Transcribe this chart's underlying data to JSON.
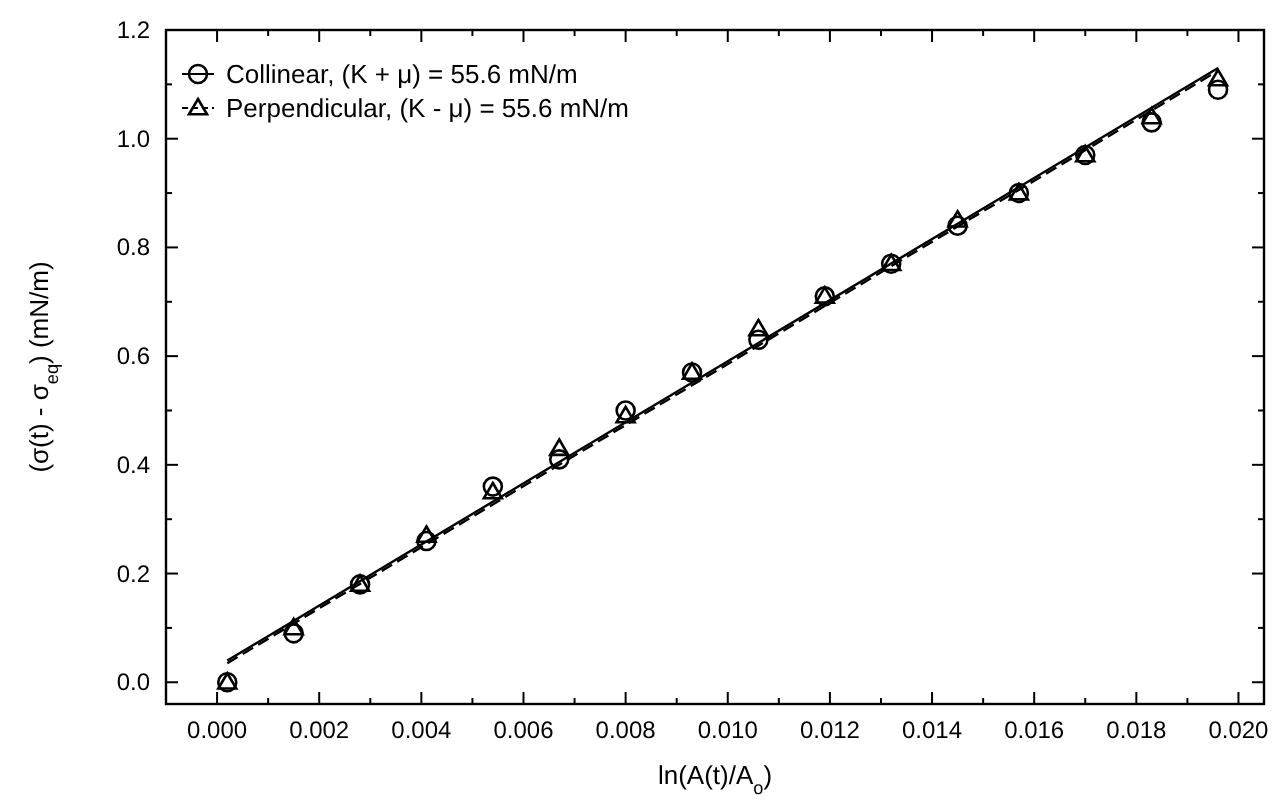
{
  "chart_data": {
    "type": "scatter",
    "xlabel": "ln(A(t)/A$_{o}$)",
    "ylabel": "(σ(t) - σ$_{eq}$) (mN/m)",
    "xlim": [
      -0.001,
      0.0205
    ],
    "ylim": [
      -0.04,
      1.2
    ],
    "xticks": [
      {
        "value": 0,
        "label": "0.000"
      },
      {
        "value": 0.001,
        "label": null
      },
      {
        "value": 0.002,
        "label": "0.002"
      },
      {
        "value": 0.003,
        "label": null
      },
      {
        "value": 0.004,
        "label": "0.004"
      },
      {
        "value": 0.005,
        "label": null
      },
      {
        "value": 0.006,
        "label": "0.006"
      },
      {
        "value": 0.007,
        "label": null
      },
      {
        "value": 0.008,
        "label": "0.008"
      },
      {
        "value": 0.009,
        "label": null
      },
      {
        "value": 0.01,
        "label": "0.010"
      },
      {
        "value": 0.011,
        "label": null
      },
      {
        "value": 0.012,
        "label": "0.012"
      },
      {
        "value": 0.013,
        "label": null
      },
      {
        "value": 0.014,
        "label": "0.014"
      },
      {
        "value": 0.015,
        "label": null
      },
      {
        "value": 0.016,
        "label": "0.016"
      },
      {
        "value": 0.017,
        "label": null
      },
      {
        "value": 0.018,
        "label": "0.018"
      },
      {
        "value": 0.019,
        "label": null
      },
      {
        "value": 0.02,
        "label": "0.020"
      }
    ],
    "yticks": [
      {
        "value": 0,
        "label": "0.0"
      },
      {
        "value": 0.1,
        "label": null
      },
      {
        "value": 0.2,
        "label": "0.2"
      },
      {
        "value": 0.3,
        "label": null
      },
      {
        "value": 0.4,
        "label": "0.4"
      },
      {
        "value": 0.5,
        "label": null
      },
      {
        "value": 0.6,
        "label": "0.6"
      },
      {
        "value": 0.7,
        "label": null
      },
      {
        "value": 0.8,
        "label": "0.8"
      },
      {
        "value": 0.9,
        "label": null
      },
      {
        "value": 1.0,
        "label": "1.0"
      },
      {
        "value": 1.1,
        "label": null
      },
      {
        "value": 1.2,
        "label": "1.2"
      }
    ],
    "grid": false,
    "legend": "top left",
    "series": [
      {
        "name": "Collinear, (K + μ) = 55.6 mN/m",
        "color": "#000000",
        "marker": "circle",
        "x": [
          0.0002,
          0.0015,
          0.0028,
          0.0041,
          0.0054,
          0.0067,
          0.008,
          0.0093,
          0.0106,
          0.0119,
          0.0132,
          0.0145,
          0.0157,
          0.017,
          0.0183,
          0.0196
        ],
        "values": [
          0.0,
          0.09,
          0.18,
          0.26,
          0.36,
          0.41,
          0.5,
          0.57,
          0.63,
          0.71,
          0.77,
          0.84,
          0.9,
          0.97,
          1.03,
          1.09
        ]
      },
      {
        "name": "Perpendicular, (K - μ) = 55.6 mN/m",
        "color": "#000000",
        "marker": "triangle",
        "x": [
          0.0002,
          0.0015,
          0.0028,
          0.0041,
          0.0054,
          0.0067,
          0.008,
          0.0093,
          0.0106,
          0.0119,
          0.0132,
          0.0145,
          0.0157,
          0.017,
          0.0183,
          0.0196
        ],
        "values": [
          0.0,
          0.1,
          0.18,
          0.27,
          0.35,
          0.43,
          0.49,
          0.57,
          0.65,
          0.71,
          0.77,
          0.85,
          0.9,
          0.97,
          1.04,
          1.11
        ]
      },
      {
        "type": "line",
        "color": "#000000",
        "line_style": "solid",
        "x": [
          0.0002,
          0.0196
        ],
        "values": [
          0.04,
          1.13
        ]
      },
      {
        "type": "line",
        "color": "#000000",
        "line_style": "dashed",
        "x": [
          0.0002,
          0.0196
        ],
        "values": [
          0.035,
          1.125
        ]
      }
    ]
  }
}
